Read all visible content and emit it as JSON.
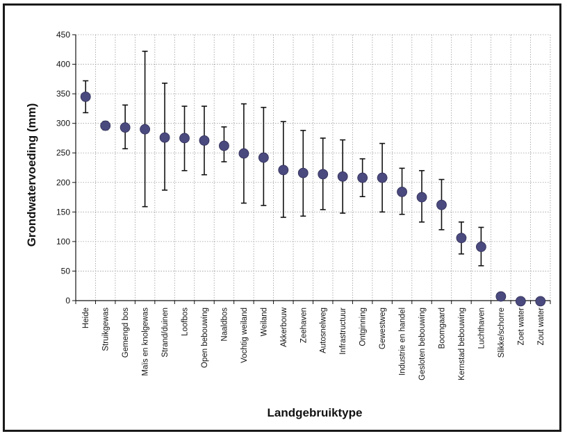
{
  "chart_data": {
    "type": "scatter",
    "title": "",
    "xlabel": "Landgebruiktype",
    "ylabel": "Grondwatervoeding (mm)",
    "ylim": [
      0,
      450
    ],
    "yticks": [
      "0",
      "50",
      "100",
      "150",
      "200",
      "250",
      "300",
      "350",
      "400",
      "450"
    ],
    "grid": true,
    "error_bars": true,
    "marker_color": "#4b4a7f",
    "categories": [
      "Heide",
      "Struikgewas",
      "Gemengd bos",
      "Maïs en knolgewas",
      "Strand/duinen",
      "Loofbos",
      "Open bebouwing",
      "Naaldbos",
      "Vochtig weiland",
      "Weiland",
      "Akkerbouw",
      "Zeehaven",
      "Autosnelweg",
      "Infrastructuur",
      "Ontginning",
      "Gewestweg",
      "Industrie en handel",
      "Gesloten bebouwing",
      "Boomgaard",
      "Kernstad bebouwing",
      "Luchthaven",
      "Slikke/schorre",
      "Zoet water",
      "Zout water"
    ],
    "values": [
      345,
      296,
      293,
      290,
      276,
      275,
      271,
      262,
      249,
      242,
      221,
      216,
      214,
      210,
      208,
      208,
      184,
      175,
      162,
      106,
      91,
      7,
      -1,
      -1
    ],
    "error_low": [
      318,
      289,
      257,
      159,
      187,
      220,
      213,
      235,
      165,
      161,
      141,
      143,
      154,
      148,
      176,
      150,
      146,
      133,
      120,
      79,
      59,
      null,
      null,
      null
    ],
    "error_high": [
      372,
      303,
      331,
      422,
      368,
      329,
      329,
      294,
      333,
      327,
      303,
      288,
      275,
      272,
      240,
      266,
      224,
      220,
      205,
      133,
      124,
      null,
      null,
      null
    ]
  }
}
